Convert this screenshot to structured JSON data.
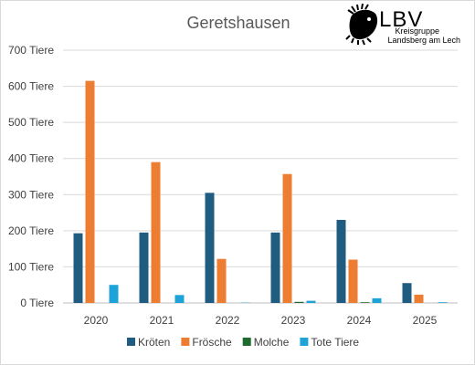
{
  "chart_data": {
    "type": "bar",
    "title": "Geretshausen",
    "categories": [
      "2020",
      "2021",
      "2022",
      "2023",
      "2024",
      "2025"
    ],
    "ylim": [
      0,
      700
    ],
    "yticks": [
      "0 Tiere",
      "100 Tiere",
      "200 Tiere",
      "300 Tiere",
      "400 Tiere",
      "500 Tiere",
      "600 Tiere",
      "700 Tiere"
    ],
    "grid": true,
    "legend_position": "bottom",
    "series": [
      {
        "name": "Kröten",
        "color": "#1F5C80",
        "values": [
          193,
          195,
          305,
          195,
          230,
          55
        ]
      },
      {
        "name": "Frösche",
        "color": "#ED7D31",
        "values": [
          615,
          390,
          122,
          357,
          120,
          23
        ]
      },
      {
        "name": "Molche",
        "color": "#1E6B2E",
        "values": [
          0,
          0,
          0,
          3,
          2,
          0
        ]
      },
      {
        "name": "Tote Tiere",
        "color": "#1EA3D8",
        "values": [
          50,
          22,
          1,
          6,
          13,
          2
        ]
      }
    ]
  },
  "logo": {
    "name": "logo-lbv",
    "text": "LBV",
    "line1": "Kreisgruppe",
    "line2": "Landsberg am Lech"
  }
}
